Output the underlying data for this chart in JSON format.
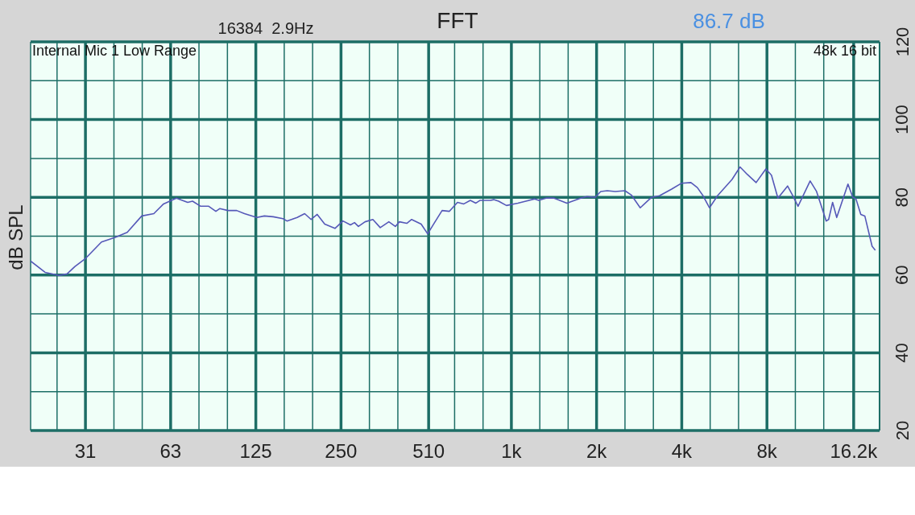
{
  "chart_data": {
    "type": "line",
    "title": "FFT",
    "ylabel": "dB SPL",
    "annotations": [
      "16384  2.9Hz",
      "86.7 dB",
      "Internal Mic 1 Low Range",
      "48k 16 bit"
    ],
    "x": [
      20,
      22.5,
      25.2,
      26.9,
      28.7,
      31.3,
      35.6,
      39.8,
      43.9,
      49.4,
      54.5,
      59,
      65.5,
      71.8,
      74.7,
      79.8,
      85.2,
      90.3,
      93.3,
      99.7,
      107,
      114,
      126,
      134,
      144,
      156,
      161,
      175,
      186,
      196,
      206,
      219,
      238,
      254,
      270,
      279,
      288,
      304,
      324,
      344,
      369,
      389,
      402,
      427,
      444,
      480,
      506,
      533,
      569,
      604,
      645,
      679,
      716,
      749,
      774,
      843,
      866,
      901,
      961,
      1054,
      1125,
      1209,
      1249,
      1325,
      1415,
      1571,
      1757,
      1851,
      1976,
      2069,
      2181,
      2328,
      2519,
      2654,
      2853,
      3128,
      3338,
      3684,
      3984,
      4310,
      4541,
      4757,
      5012,
      5350,
      6022,
      6428,
      6816,
      7325,
      7928,
      8300,
      8747,
      9462,
      9844,
      10303,
      11369,
      11978,
      12959,
      13216,
      13650,
      14113,
      15466,
      16090,
      16503,
      17169,
      17741,
      18819,
      19319
    ],
    "values": [
      63.6,
      60.7,
      59.9,
      60.3,
      62.2,
      64.3,
      68.5,
      69.7,
      71,
      75.2,
      75.8,
      78.3,
      79.8,
      78.7,
      79,
      77.7,
      77.7,
      76.4,
      77.1,
      76.6,
      76.6,
      75.8,
      74.8,
      75.2,
      75,
      74.5,
      73.9,
      74.8,
      75.8,
      74.3,
      75.6,
      73.1,
      72,
      73.9,
      72.9,
      73.5,
      72.5,
      73.7,
      74.3,
      72.2,
      73.7,
      72.5,
      73.7,
      73.3,
      74.3,
      73.1,
      70.6,
      73.3,
      76.6,
      76.4,
      78.7,
      78.3,
      79.2,
      78.5,
      79.2,
      79.2,
      79.4,
      79,
      77.9,
      78.5,
      79,
      79.6,
      79.2,
      79.8,
      79.8,
      78.5,
      79.8,
      80.2,
      80,
      81.5,
      81.7,
      81.5,
      81.7,
      80.6,
      77.3,
      80,
      80.4,
      82.1,
      83.6,
      83.8,
      82.5,
      80.4,
      77.3,
      80.4,
      84.6,
      87.8,
      85.9,
      83.8,
      87.3,
      85.7,
      79.8,
      82.9,
      80.6,
      77.7,
      84.2,
      81.5,
      73.9,
      74.3,
      78.7,
      74.8,
      83.4,
      80,
      79.6,
      75.6,
      75.2,
      67.4,
      66.4
    ],
    "color": "#5558b8",
    "log": "x",
    "grid": true,
    "xlim": [
      20,
      20000
    ],
    "xticks": [
      {
        "value": 24.8,
        "label": null
      },
      {
        "value": 31.25,
        "label": "31"
      },
      {
        "value": 39.4,
        "label": null
      },
      {
        "value": 49.6,
        "label": null
      },
      {
        "value": 62.5,
        "label": "63"
      },
      {
        "value": 78.7,
        "label": null
      },
      {
        "value": 99.2,
        "label": null
      },
      {
        "value": 125,
        "label": "125"
      },
      {
        "value": 157.5,
        "label": null
      },
      {
        "value": 198.4,
        "label": null
      },
      {
        "value": 250,
        "label": "250"
      },
      {
        "value": 315,
        "label": null
      },
      {
        "value": 397,
        "label": null
      },
      {
        "value": 510,
        "label": "510"
      },
      {
        "value": 630,
        "label": null
      },
      {
        "value": 794,
        "label": null
      },
      {
        "value": 1000,
        "label": "1k"
      },
      {
        "value": 1260,
        "label": null
      },
      {
        "value": 1587,
        "label": null
      },
      {
        "value": 2000,
        "label": "2k"
      },
      {
        "value": 2520,
        "label": null
      },
      {
        "value": 3175,
        "label": null
      },
      {
        "value": 4000,
        "label": "4k"
      },
      {
        "value": 5040,
        "label": null
      },
      {
        "value": 6350,
        "label": null
      },
      {
        "value": 8000,
        "label": "8k"
      },
      {
        "value": 10080,
        "label": null
      },
      {
        "value": 12700,
        "label": null
      },
      {
        "value": 16200,
        "label": "16.2k"
      }
    ],
    "ylim": [
      20,
      120
    ],
    "yticks": [
      20,
      {
        "value": 30,
        "label": null
      },
      40,
      {
        "value": 50,
        "label": null
      },
      60,
      {
        "value": 70,
        "label": null
      },
      80,
      {
        "value": 90,
        "label": null
      },
      100,
      {
        "value": 110,
        "label": null
      },
      120
    ]
  }
}
